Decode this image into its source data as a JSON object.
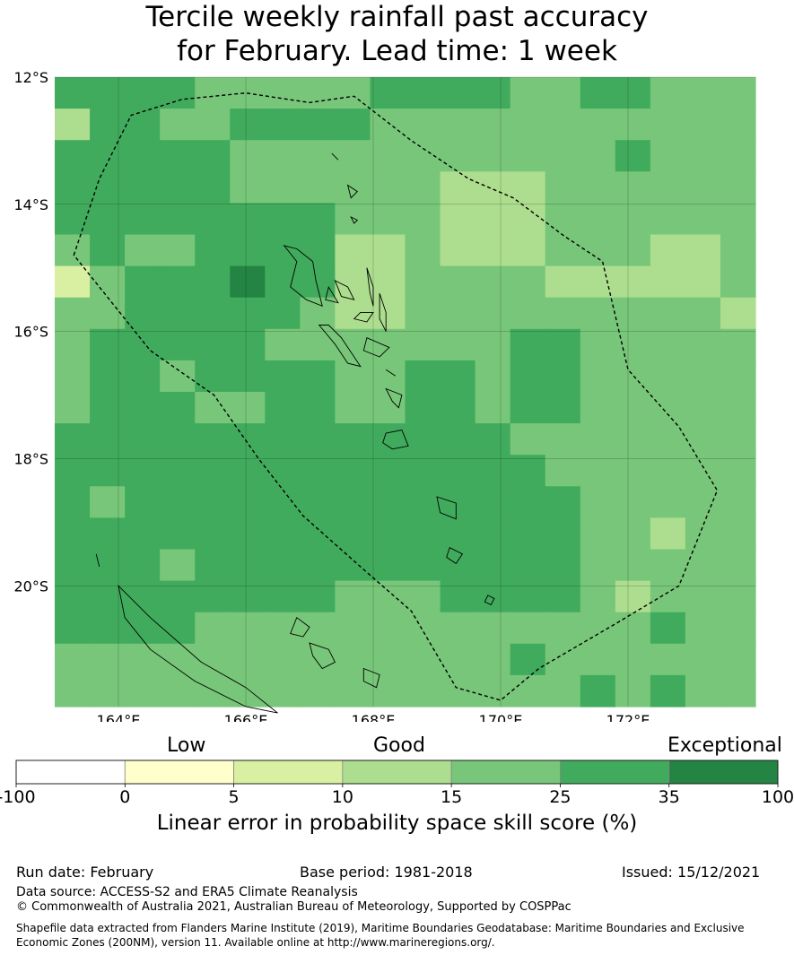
{
  "title": {
    "line1": "Tercile weekly rainfall past accuracy",
    "line2": "for February. Lead time: 1 week"
  },
  "map": {
    "lat_labels": [
      "12°S",
      "14°S",
      "16°S",
      "18°S",
      "20°S"
    ],
    "lon_labels": [
      "164°E",
      "166°E",
      "168°E",
      "170°E",
      "172°E"
    ],
    "lat_values": [
      -12,
      -14,
      -16,
      -18,
      -20
    ],
    "lon_values": [
      164,
      166,
      168,
      170,
      172
    ],
    "extent": {
      "lon_min": 163,
      "lon_max": 174,
      "lat_max": -12,
      "lat_min": -21.9
    },
    "grid_skill_pct": [
      [
        25,
        25,
        25,
        25,
        15,
        15,
        15,
        15,
        15,
        25,
        25,
        25,
        25,
        15,
        15,
        25,
        25,
        15,
        15,
        15
      ],
      [
        10,
        25,
        25,
        15,
        15,
        25,
        25,
        25,
        25,
        15,
        15,
        15,
        15,
        15,
        15,
        15,
        15,
        15,
        15,
        15
      ],
      [
        25,
        25,
        25,
        25,
        25,
        15,
        15,
        15,
        15,
        15,
        15,
        15,
        15,
        15,
        15,
        15,
        25,
        15,
        15,
        15
      ],
      [
        25,
        25,
        25,
        25,
        25,
        15,
        15,
        15,
        15,
        15,
        15,
        10,
        10,
        10,
        15,
        15,
        15,
        15,
        15,
        15
      ],
      [
        25,
        25,
        25,
        25,
        25,
        25,
        25,
        25,
        15,
        15,
        15,
        10,
        10,
        10,
        15,
        15,
        15,
        15,
        15,
        15
      ],
      [
        15,
        25,
        15,
        15,
        25,
        25,
        25,
        25,
        10,
        10,
        15,
        10,
        10,
        10,
        15,
        15,
        15,
        10,
        10,
        15
      ],
      [
        5,
        15,
        25,
        25,
        25,
        35,
        25,
        25,
        10,
        10,
        15,
        15,
        15,
        15,
        10,
        10,
        10,
        10,
        10,
        15
      ],
      [
        15,
        15,
        25,
        25,
        25,
        25,
        25,
        15,
        10,
        10,
        15,
        15,
        15,
        15,
        15,
        15,
        15,
        15,
        15,
        10
      ],
      [
        15,
        25,
        25,
        25,
        25,
        25,
        15,
        15,
        15,
        15,
        15,
        15,
        15,
        25,
        25,
        15,
        15,
        15,
        15,
        15
      ],
      [
        15,
        25,
        25,
        15,
        25,
        25,
        25,
        25,
        15,
        15,
        25,
        25,
        15,
        25,
        25,
        15,
        15,
        15,
        15,
        15
      ],
      [
        15,
        25,
        25,
        25,
        15,
        15,
        25,
        25,
        15,
        15,
        25,
        25,
        15,
        25,
        25,
        15,
        15,
        15,
        15,
        15
      ],
      [
        25,
        25,
        25,
        25,
        25,
        25,
        25,
        25,
        25,
        25,
        25,
        25,
        25,
        15,
        15,
        15,
        15,
        15,
        15,
        15
      ],
      [
        25,
        25,
        25,
        25,
        25,
        25,
        25,
        25,
        25,
        25,
        25,
        25,
        25,
        25,
        15,
        15,
        15,
        15,
        15,
        15
      ],
      [
        25,
        15,
        25,
        25,
        25,
        25,
        25,
        25,
        25,
        25,
        25,
        25,
        25,
        25,
        25,
        15,
        15,
        15,
        15,
        15
      ],
      [
        25,
        25,
        25,
        25,
        25,
        25,
        25,
        25,
        25,
        25,
        25,
        25,
        25,
        25,
        25,
        15,
        15,
        10,
        15,
        15
      ],
      [
        25,
        25,
        25,
        15,
        25,
        25,
        25,
        25,
        25,
        25,
        25,
        25,
        25,
        25,
        25,
        15,
        15,
        15,
        15,
        15
      ],
      [
        25,
        25,
        25,
        25,
        25,
        25,
        25,
        25,
        15,
        15,
        15,
        25,
        25,
        25,
        25,
        15,
        10,
        15,
        15,
        15
      ],
      [
        25,
        25,
        25,
        25,
        15,
        15,
        15,
        15,
        15,
        15,
        15,
        15,
        15,
        15,
        15,
        15,
        15,
        25,
        15,
        15
      ],
      [
        15,
        15,
        15,
        15,
        15,
        15,
        15,
        15,
        15,
        15,
        15,
        15,
        15,
        25,
        15,
        15,
        15,
        15,
        15,
        15
      ],
      [
        15,
        15,
        15,
        15,
        15,
        15,
        15,
        15,
        15,
        15,
        15,
        15,
        15,
        15,
        15,
        25,
        15,
        25,
        15,
        15
      ]
    ]
  },
  "colorbar": {
    "category_labels": [
      "Low",
      "Good",
      "Exceptional"
    ],
    "tick_labels": [
      "-100",
      "0",
      "5",
      "10",
      "15",
      "25",
      "35",
      "100"
    ],
    "colors": [
      "#ffffff",
      "#ffffcc",
      "#d9f0a3",
      "#addd8e",
      "#78c679",
      "#41ab5d",
      "#238443"
    ],
    "title": "Linear error in probability space skill score (%)"
  },
  "footer": {
    "run_date": "Run date: February",
    "base_period": "Base period: 1981-2018",
    "issued": "Issued: 15/12/2021",
    "data_source": "Data source: ACCESS-S2 and ERA5 Climate Reanalysis",
    "copyright": "© Commonwealth of Australia 2021, Australian Bureau of Meteorology, Supported by COSPPac",
    "shapefile_note": "Shapefile data extracted from Flanders Marine Institute (2019), Maritime Boundaries Geodatabase: Maritime Boundaries and Exclusive Economic Zones (200NM), version 11. Available online at http://www.marineregions.org/."
  }
}
